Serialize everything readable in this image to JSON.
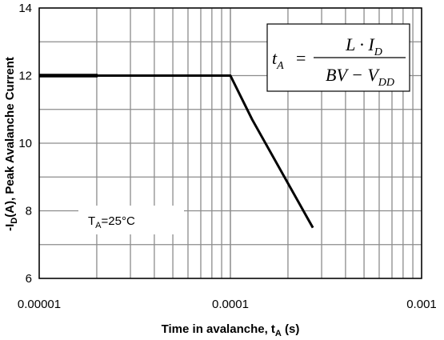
{
  "chart_data": {
    "type": "line",
    "x_scale": "log",
    "xlim": [
      1e-05,
      0.001
    ],
    "ylim": [
      6,
      14
    ],
    "x_tick_labels": [
      "0.00001",
      "0.0001",
      "0.001"
    ],
    "y_tick_labels": [
      "6",
      "8",
      "10",
      "12",
      "14"
    ],
    "x_ticks": [
      1e-05,
      0.0001,
      0.001
    ],
    "y_ticks": [
      6,
      8,
      10,
      12,
      14
    ],
    "xlabel": {
      "main": "Time in avalanche, t",
      "sub": "A",
      "units": " (s)"
    },
    "ylabel": {
      "pre": "-I",
      "sub": "D",
      "post": "(A), Peak Avalanche Current"
    },
    "grid": true,
    "series": [
      {
        "x": [
          1e-05,
          2.02e-05,
          0.0001,
          0.00013,
          0.00027
        ],
        "y": [
          12,
          12,
          12,
          10.7,
          7.5
        ]
      }
    ],
    "annotations": {
      "temperature": {
        "t": "T",
        "sub": "A",
        "rest": "=25°C"
      },
      "formula": {
        "lhs": "t",
        "lhs_sub": "A",
        "eq": "=",
        "num": "L · I",
        "num_sub": "D",
        "den": "BV − V",
        "den_sub": "DD"
      }
    },
    "colors": {
      "line": "#000000",
      "grid": "#8c8c8c",
      "frame": "#000000",
      "background": "#ffffff"
    }
  }
}
